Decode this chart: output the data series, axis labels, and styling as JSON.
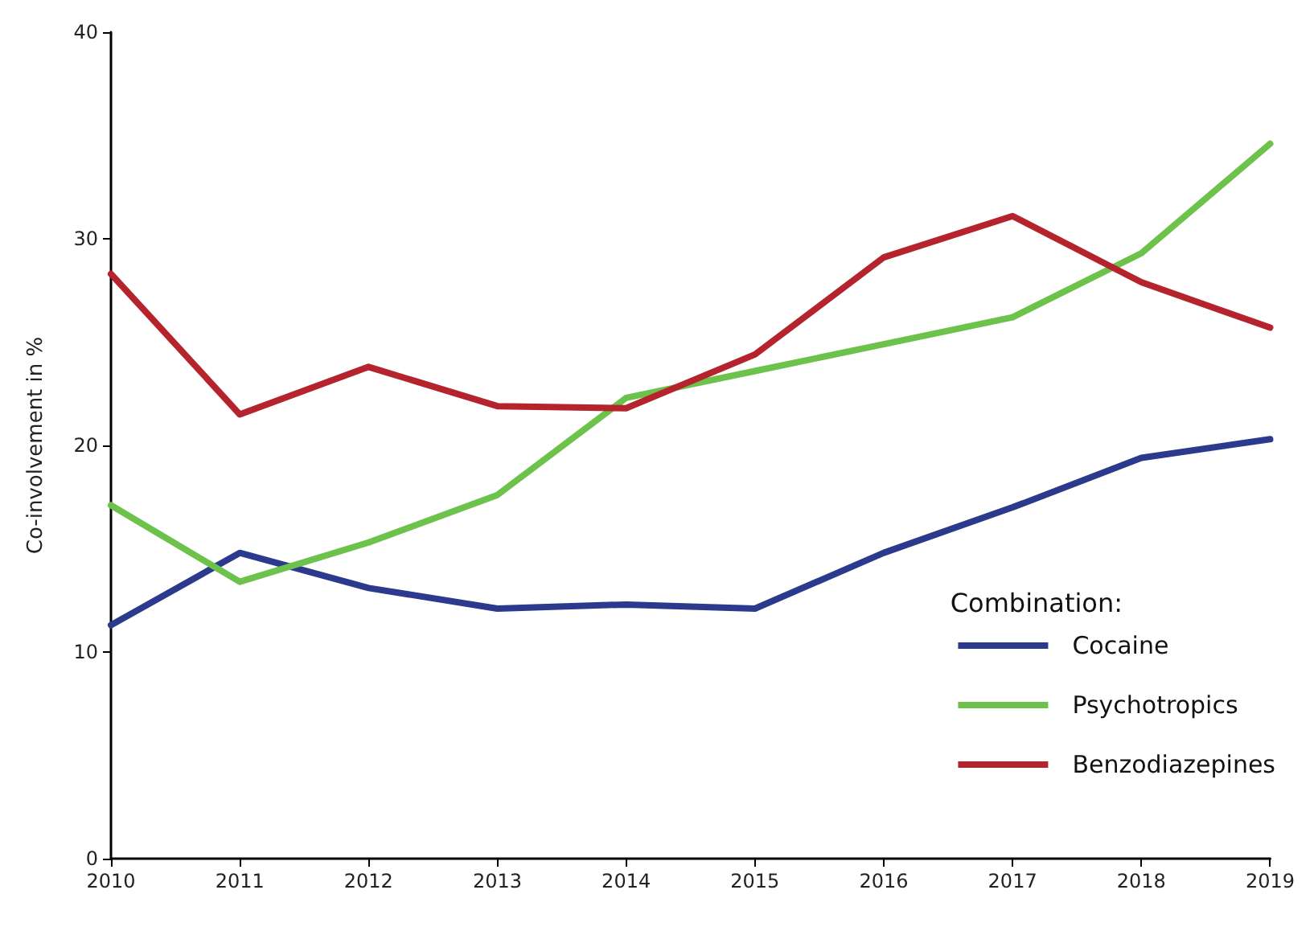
{
  "chart_data": {
    "type": "line",
    "ylabel": "Co-involvement in %",
    "legend_title": "Combination:",
    "categories": [
      "2010",
      "2011",
      "2012",
      "2013",
      "2014",
      "2015",
      "2016",
      "2017",
      "2018",
      "2019"
    ],
    "series": [
      {
        "name": "Cocaine",
        "color": "#2b3a8c",
        "values": [
          11.3,
          14.8,
          13.1,
          12.1,
          12.3,
          12.1,
          14.8,
          17.0,
          19.4,
          20.3
        ]
      },
      {
        "name": "Psychotropics",
        "color": "#6cc24a",
        "values": [
          17.1,
          13.4,
          15.3,
          17.6,
          22.3,
          23.6,
          24.9,
          26.2,
          29.3,
          34.6
        ]
      },
      {
        "name": "Benzodiazepines",
        "color": "#b5232c",
        "values": [
          28.3,
          21.5,
          23.8,
          21.9,
          21.8,
          24.4,
          29.1,
          31.1,
          27.9,
          25.7
        ]
      }
    ],
    "ylim": [
      0,
      40
    ],
    "yticks": [
      0,
      10,
      20,
      30,
      40
    ],
    "grid": false,
    "legend": "bottom right",
    "marker": "none",
    "line_style": "solid"
  }
}
